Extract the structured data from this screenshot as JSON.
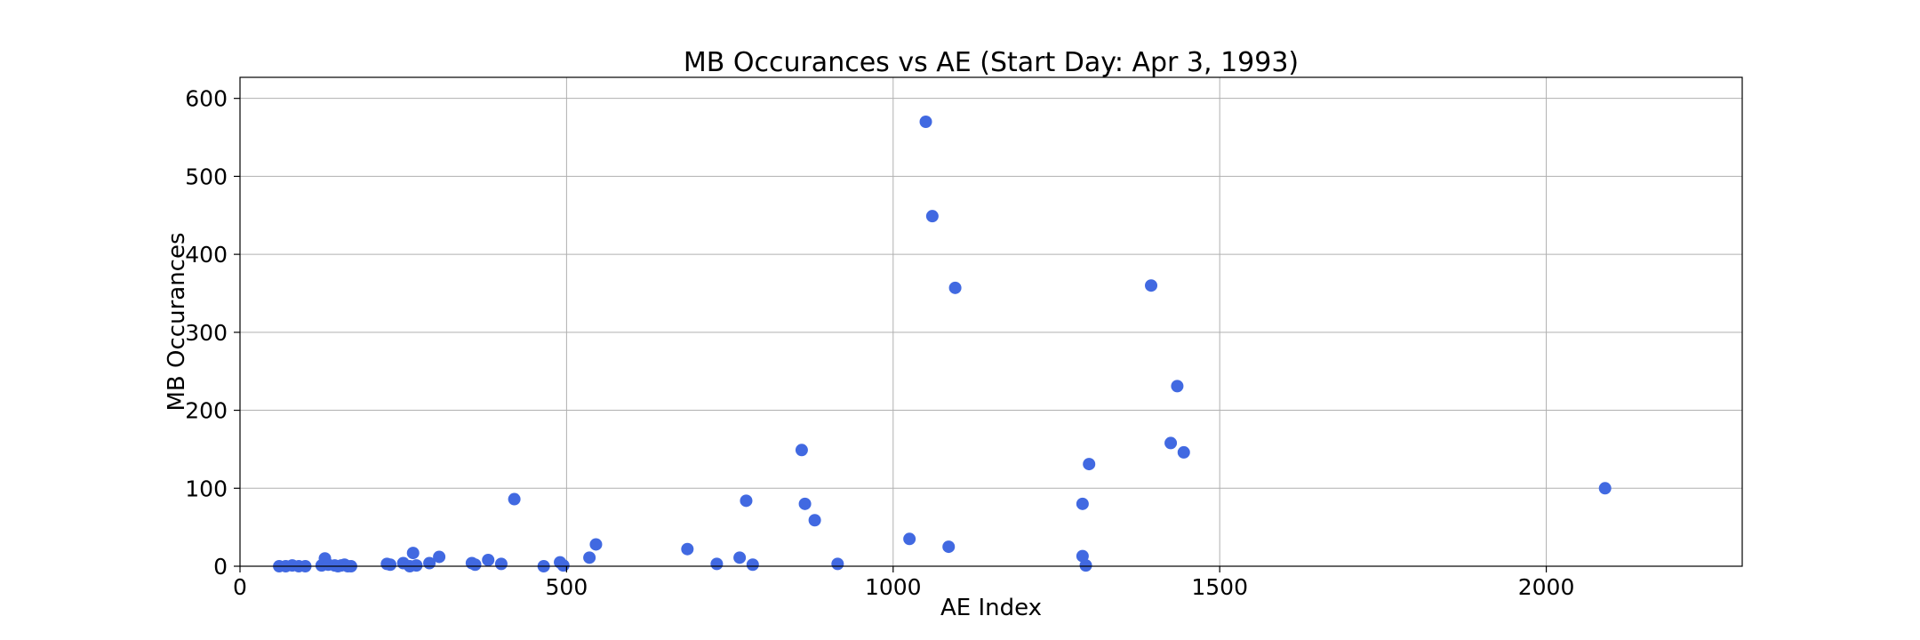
{
  "chart_data": {
    "type": "scatter",
    "title": "MB Occurances vs AE (Start Day: Apr 3, 1993)",
    "xlabel": "AE Index",
    "ylabel": "MB Occurances",
    "xlim": [
      0,
      2300
    ],
    "ylim": [
      0,
      627
    ],
    "xticks": [
      0,
      500,
      1000,
      1500,
      2000
    ],
    "yticks": [
      0,
      100,
      200,
      300,
      400,
      500,
      600
    ],
    "grid": true,
    "marker_color": "#4169e1",
    "points": [
      [
        60,
        0
      ],
      [
        70,
        0
      ],
      [
        80,
        1
      ],
      [
        90,
        0
      ],
      [
        100,
        0
      ],
      [
        125,
        1
      ],
      [
        130,
        10
      ],
      [
        135,
        2
      ],
      [
        145,
        1
      ],
      [
        150,
        0
      ],
      [
        155,
        1
      ],
      [
        160,
        2
      ],
      [
        165,
        0
      ],
      [
        170,
        0
      ],
      [
        225,
        3
      ],
      [
        230,
        2
      ],
      [
        250,
        4
      ],
      [
        260,
        0
      ],
      [
        265,
        17
      ],
      [
        270,
        1
      ],
      [
        290,
        4
      ],
      [
        305,
        12
      ],
      [
        355,
        4
      ],
      [
        360,
        2
      ],
      [
        380,
        8
      ],
      [
        400,
        3
      ],
      [
        420,
        86
      ],
      [
        465,
        0
      ],
      [
        490,
        5
      ],
      [
        495,
        1
      ],
      [
        535,
        11
      ],
      [
        545,
        28
      ],
      [
        685,
        22
      ],
      [
        730,
        3
      ],
      [
        765,
        11
      ],
      [
        775,
        84
      ],
      [
        785,
        2
      ],
      [
        860,
        149
      ],
      [
        865,
        80
      ],
      [
        880,
        59
      ],
      [
        915,
        3
      ],
      [
        1025,
        35
      ],
      [
        1050,
        570
      ],
      [
        1060,
        449
      ],
      [
        1085,
        25
      ],
      [
        1095,
        357
      ],
      [
        1290,
        80
      ],
      [
        1290,
        13
      ],
      [
        1295,
        1
      ],
      [
        1300,
        131
      ],
      [
        1395,
        360
      ],
      [
        1425,
        158
      ],
      [
        1435,
        231
      ],
      [
        1445,
        146
      ],
      [
        2090,
        100
      ]
    ]
  }
}
